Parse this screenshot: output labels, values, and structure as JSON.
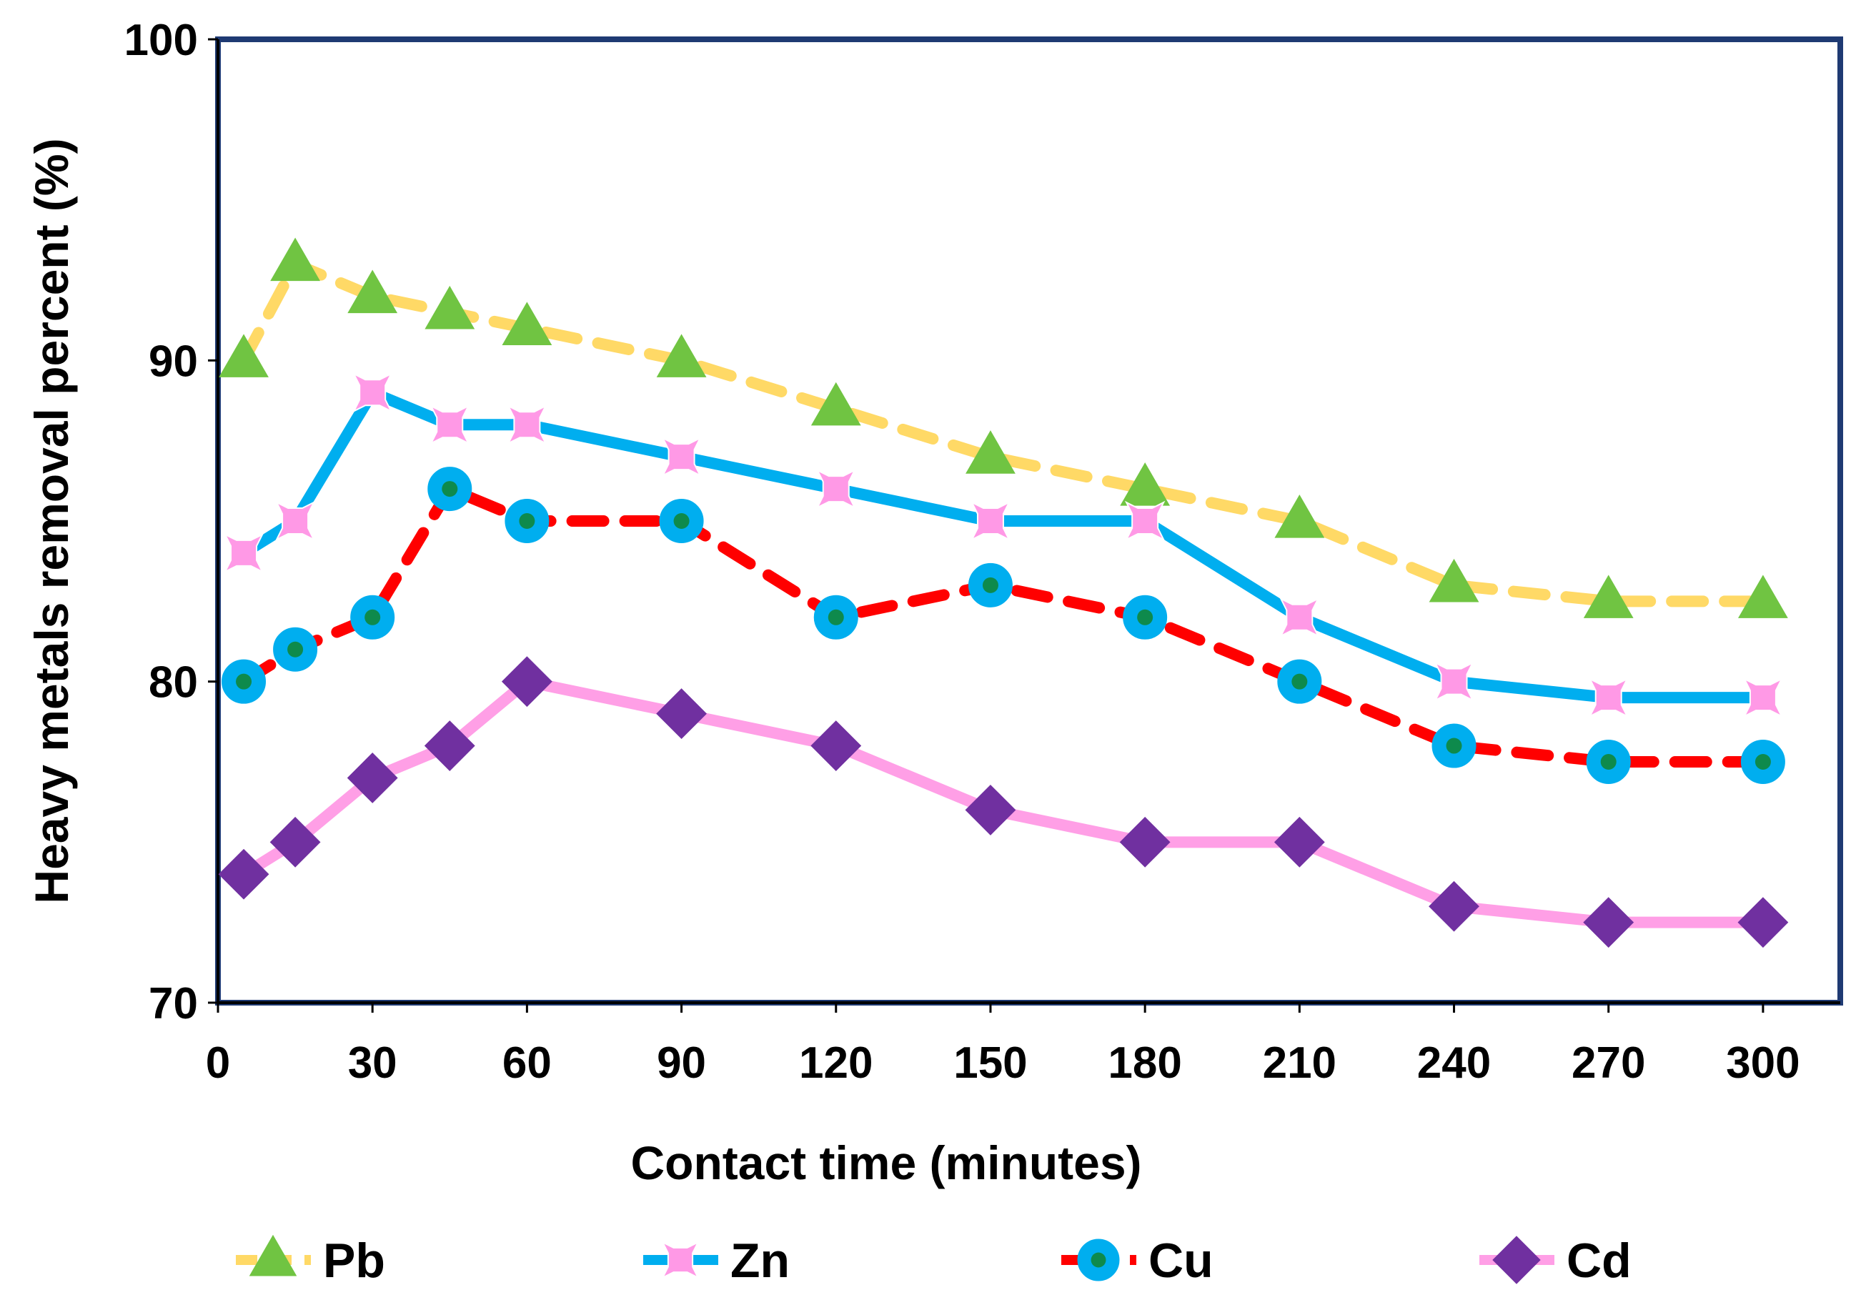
{
  "chart_data": {
    "type": "line",
    "title": "",
    "xlabel": "Contact time (minutes)",
    "ylabel": "Heavy metals removal percent (%)",
    "xlim": [
      0,
      315
    ],
    "ylim": [
      70,
      100
    ],
    "xticks": [
      0,
      30,
      60,
      90,
      120,
      150,
      180,
      210,
      240,
      270,
      300
    ],
    "yticks": [
      70,
      80,
      90,
      100
    ],
    "x": [
      5,
      15,
      30,
      45,
      60,
      90,
      120,
      150,
      180,
      210,
      240,
      270,
      300
    ],
    "series": [
      {
        "name": "Pb",
        "values": [
          90,
          93,
          92,
          91.5,
          91,
          90,
          88.5,
          87,
          86,
          85,
          83,
          82.5,
          82.5
        ],
        "line_color": "#FFD966",
        "line_style": "dashed",
        "marker": "triangle",
        "marker_color": "#70C442",
        "marker_edge": "#70C442",
        "marker_center": "#70C442"
      },
      {
        "name": "Zn",
        "values": [
          84,
          85,
          89,
          88,
          88,
          87,
          86,
          85,
          85,
          82,
          80,
          79.5,
          79.5
        ],
        "line_color": "#00AEEF",
        "line_style": "solid",
        "marker": "cross",
        "marker_color": "#FF99E6",
        "marker_edge": "#FF99E6",
        "marker_center": "#FF99E6"
      },
      {
        "name": "Cu",
        "values": [
          80,
          81,
          82,
          86,
          85,
          85,
          82,
          83,
          82,
          80,
          78,
          77.5,
          77.5
        ],
        "line_color": "#FF0000",
        "line_style": "dashed",
        "marker": "circle",
        "marker_color": "#00AEEF",
        "marker_edge": "#00AEEF",
        "marker_center": "#0E8A4C"
      },
      {
        "name": "Cd",
        "values": [
          74,
          75,
          77,
          78,
          80,
          79,
          78,
          76,
          75,
          75,
          73,
          72.5,
          72.5
        ],
        "line_color": "#FF9FE6",
        "line_style": "solid",
        "marker": "diamond",
        "marker_color": "#7030A0",
        "marker_edge": "#7030A0",
        "marker_center": "#7030A0"
      }
    ],
    "legend_position": "bottom",
    "grid": false,
    "frame_color": "#1F3A73"
  }
}
